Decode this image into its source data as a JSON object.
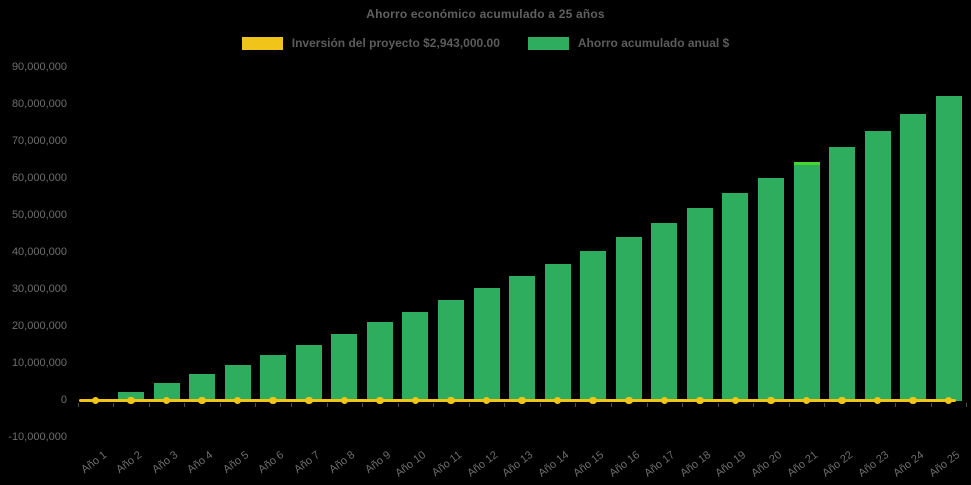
{
  "chart": {
    "title": "Ahorro económico acumulado a 25 años",
    "legend": [
      {
        "label": "Inversión del proyecto $2,943,000.00",
        "color": "#f0c419"
      },
      {
        "label": "Ahorro acumulado anual $",
        "color": "#2ead5f"
      }
    ]
  },
  "colors": {
    "background": "#000000",
    "bar_green": "#2ead5f",
    "line_yellow": "#f0c419",
    "highlight_green": "#45d629",
    "title_text": "#616161",
    "axis_text": "#6e6e6e",
    "tick_mark": "#4a4a4a"
  },
  "chart_data": {
    "type": "bar",
    "title": "Ahorro económico acumulado a 25 años",
    "categories": [
      "Año 1",
      "Año 2",
      "Año 3",
      "Año 4",
      "Año 5",
      "Año 6",
      "Año 7",
      "Año 8",
      "Año 9",
      "Año 10",
      "Año 11",
      "Año 12",
      "Año 13",
      "Año 14",
      "Año 15",
      "Año 16",
      "Año 17",
      "Año 18",
      "Año 19",
      "Año 20",
      "Año 21",
      "Año 22",
      "Año 23",
      "Año 24",
      "Año 25"
    ],
    "series": [
      {
        "name": "Ahorro acumulado anual $",
        "type": "bar",
        "color": "#2ead5f",
        "values": [
          100000,
          2300000,
          4600000,
          7000000,
          9500000,
          12100000,
          15000000,
          17900000,
          21000000,
          23900000,
          27000000,
          30300000,
          33500000,
          36900000,
          40400000,
          44100000,
          47900000,
          51800000,
          55900000,
          60000000,
          64200000,
          68400000,
          72700000,
          77400000,
          82200000
        ]
      },
      {
        "name": "Inversión del proyecto $2,943,000.00",
        "type": "line",
        "color": "#f0c419",
        "marker": "circle",
        "constant_value": 2943000,
        "rendered_at_value": 0
      }
    ],
    "xlabel": "",
    "ylabel": "",
    "ylim": [
      -10000000,
      90000000
    ],
    "ytick_step": 10000000,
    "grid": false,
    "legend_position": "top-center",
    "background": "#000000",
    "highlighted_bar": {
      "category": "Año 21",
      "cap_color": "#45d629"
    }
  }
}
